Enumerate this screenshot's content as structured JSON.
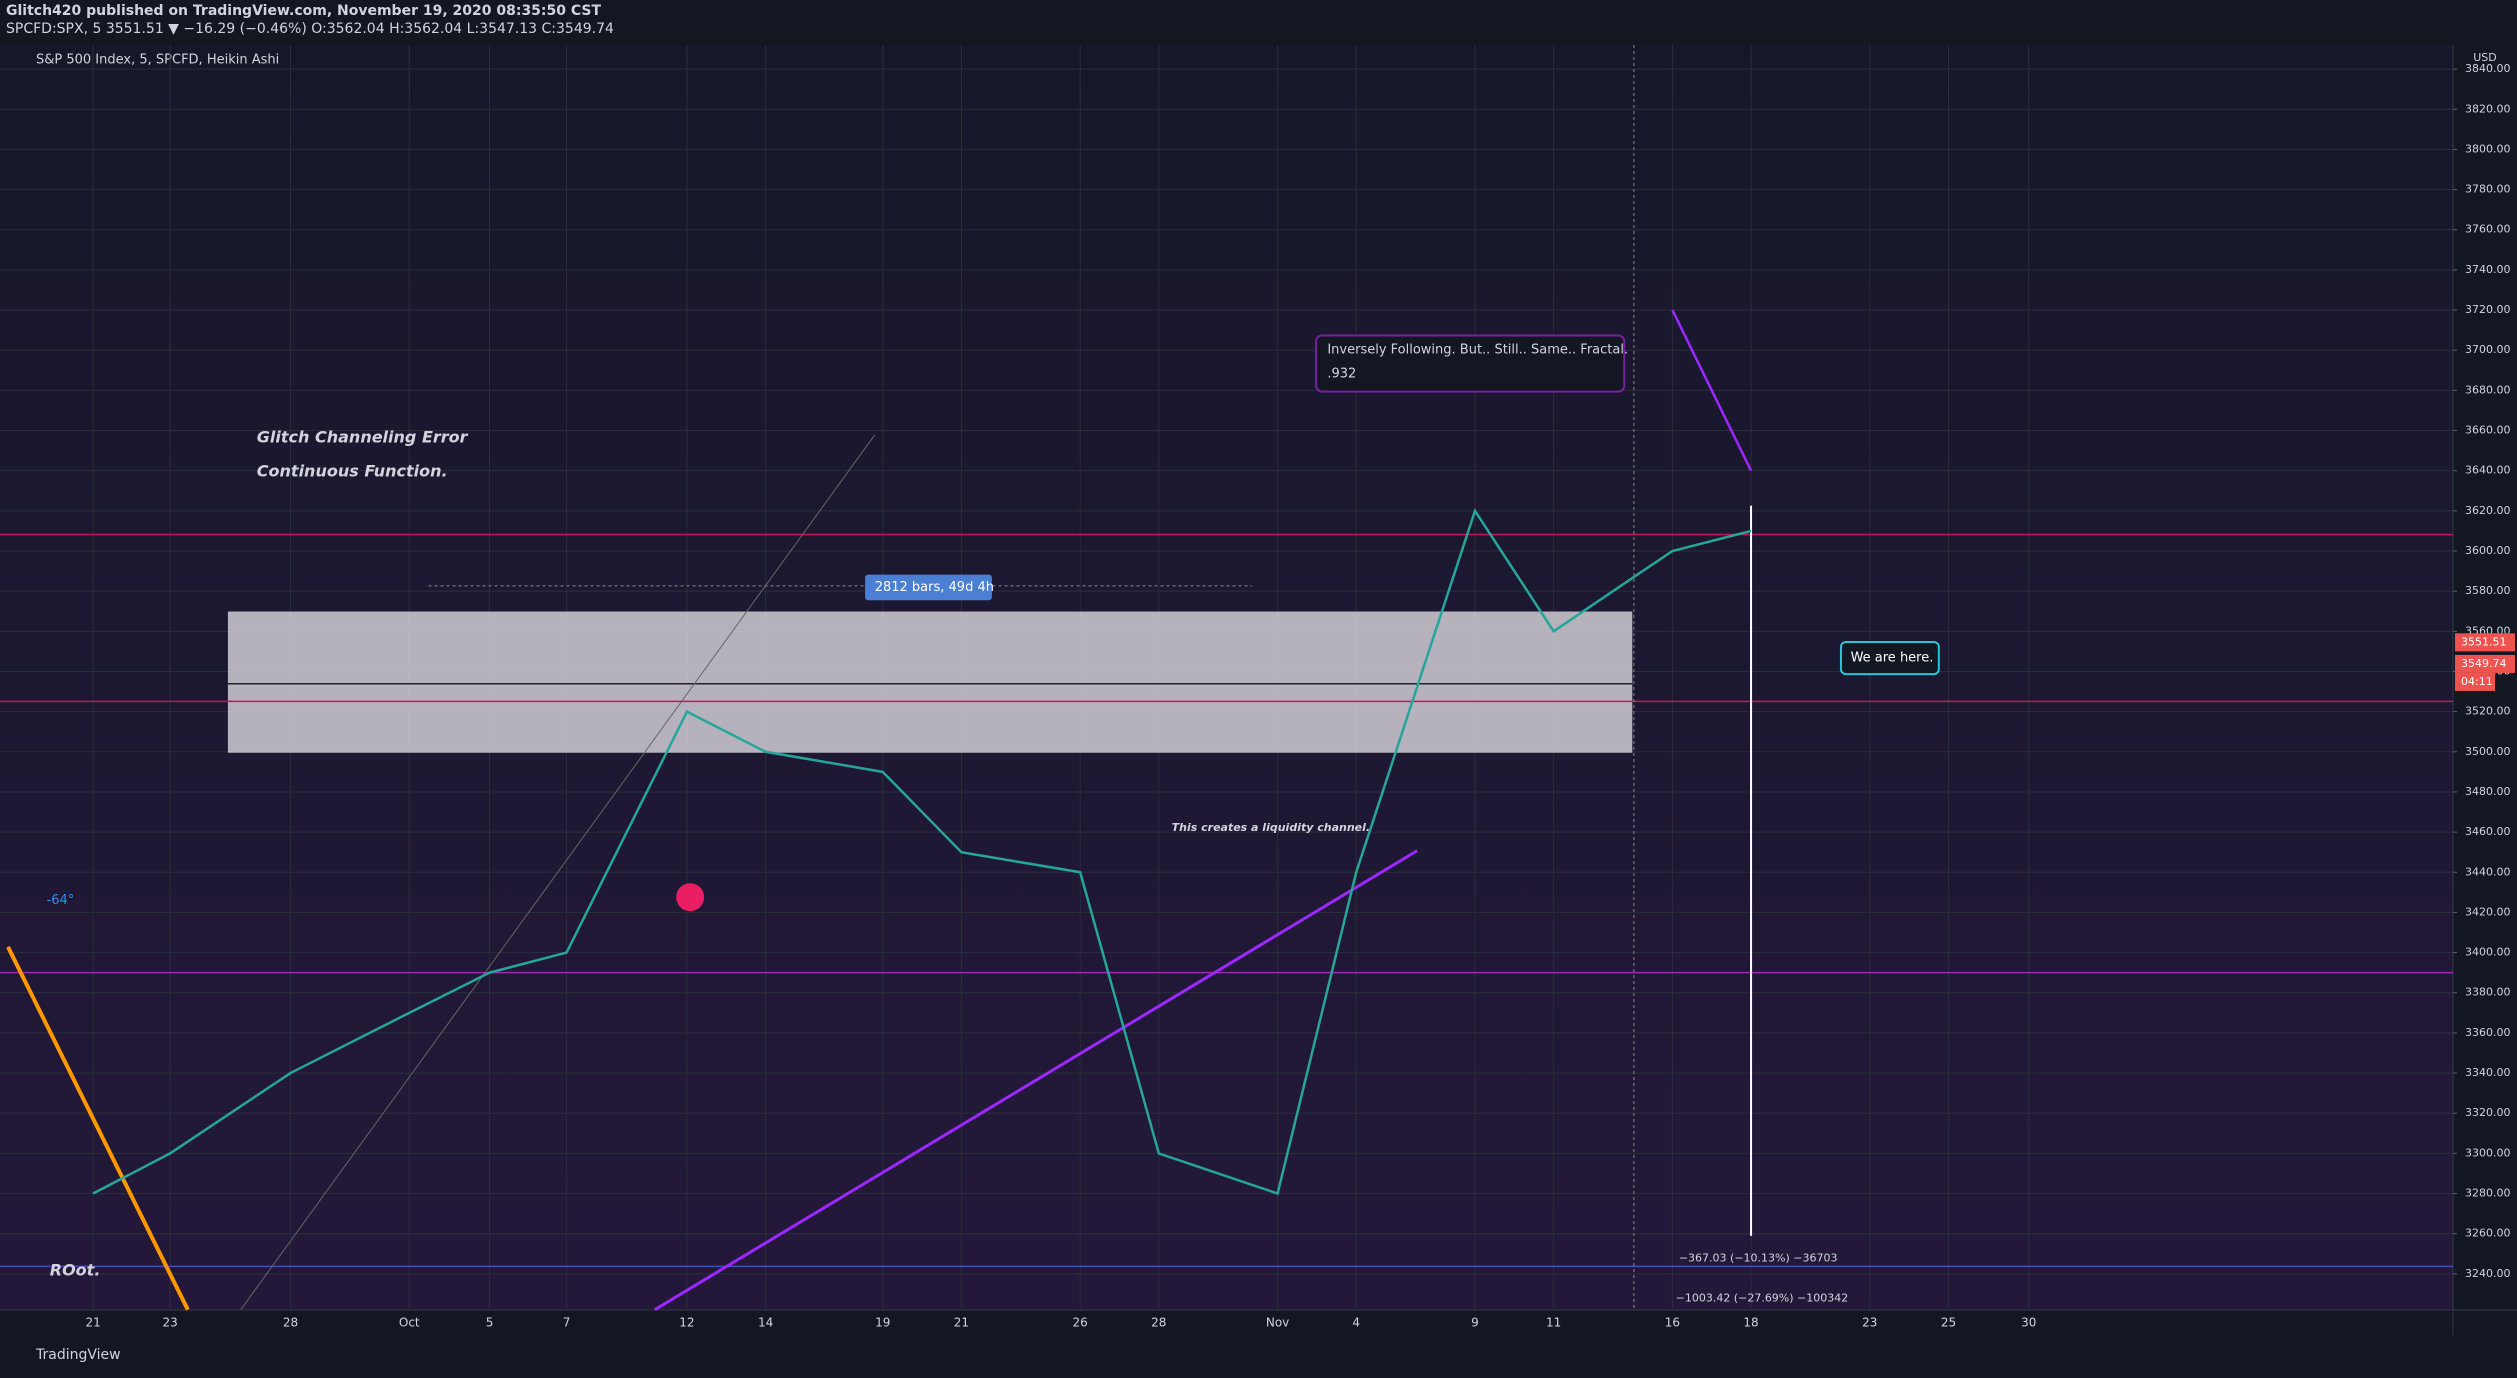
{
  "header": {
    "publisher": "Glitch420 published on TradingView.com, November 19, 2020 08:35:50 CST",
    "quote": "SPCFD:SPX, 5  3551.51 ▼ −16.29 (−0.46%) O:3562.04 H:3562.04 L:3547.13 C:3549.74"
  },
  "footer": {
    "brand": "TradingView"
  },
  "chart_data": {
    "type": "line",
    "title": "S&P 500 Index, 5, SPCFD, Heikin Ashi",
    "y_axis_label": "USD",
    "categories": [
      "21",
      "23",
      "28",
      "Oct",
      "5",
      "7",
      "12",
      "14",
      "19",
      "21",
      "26",
      "28",
      "Nov",
      "4",
      "9",
      "11",
      "16",
      "18",
      "23",
      "25",
      "30"
    ],
    "series": [
      {
        "color": "#26a69a",
        "values": [
          3280,
          3300,
          3340,
          3370,
          3390,
          3400,
          3520,
          3500,
          3490,
          3450,
          3440,
          3300,
          3280,
          3440,
          3620,
          3560,
          3600,
          3610,
          null,
          null,
          null
        ]
      },
      {
        "color": "#9c27ff",
        "values": [
          null,
          null,
          null,
          null,
          null,
          null,
          null,
          null,
          null,
          null,
          null,
          null,
          null,
          null,
          null,
          null,
          3720,
          3640,
          null,
          null,
          null
        ]
      }
    ],
    "ylim": [
      3222,
      3852
    ],
    "yticks": [
      {
        "value": 3240,
        "label": "3240.00"
      },
      {
        "value": 3260,
        "label": "3260.00"
      },
      {
        "value": 3280,
        "label": "3280.00"
      },
      {
        "value": 3300,
        "label": "3300.00"
      },
      {
        "value": 3320,
        "label": "3320.00"
      },
      {
        "value": 3340,
        "label": "3340.00"
      },
      {
        "value": 3360,
        "label": "3360.00"
      },
      {
        "value": 3380,
        "label": "3380.00"
      },
      {
        "value": 3400,
        "label": "3400.00"
      },
      {
        "value": 3420,
        "label": "3420.00"
      },
      {
        "value": 3440,
        "label": "3440.00"
      },
      {
        "value": 3460,
        "label": "3460.00"
      },
      {
        "value": 3480,
        "label": "3480.00"
      },
      {
        "value": 3500,
        "label": "3500.00"
      },
      {
        "value": 3520,
        "label": "3520.00"
      },
      {
        "value": 3540,
        "label": "3540.00"
      },
      {
        "value": 3560,
        "label": "3560.00"
      },
      {
        "value": 3580,
        "label": "3580.00"
      },
      {
        "value": 3600,
        "label": "3600.00"
      },
      {
        "value": 3620,
        "label": "3620.00"
      },
      {
        "value": 3640,
        "label": "3640.00"
      },
      {
        "value": 3660,
        "label": "3660.00"
      },
      {
        "value": 3680,
        "label": "3680.00"
      },
      {
        "value": 3700,
        "label": "3700.00"
      },
      {
        "value": 3720,
        "label": "3720.00"
      },
      {
        "value": 3740,
        "label": "3740.00"
      },
      {
        "value": 3760,
        "label": "3760.00"
      },
      {
        "value": 3780,
        "label": "3780.00"
      },
      {
        "value": 3800,
        "label": "3800.00"
      },
      {
        "value": 3820,
        "label": "3820.00"
      },
      {
        "value": 3840,
        "label": "3840.00"
      }
    ],
    "grid": true,
    "price_markers": [
      {
        "value": 3551.51,
        "label": "3551.51"
      },
      {
        "value": 3549.74,
        "label": "3549.74"
      }
    ],
    "countdown": "04:11",
    "annotations": [
      "Glitch Channeling Error",
      "Continuous Function.",
      "2812 bars, 49d 4h",
      "This creates a liquidity channel.",
      "Inversely Following. But.. Still.. Same.. Fractal.",
      ".932",
      "We are here.",
      "ROot.",
      "-64°",
      "−367.03 (−10.13%) −36703",
      "−1003.42 (−27.69%) −100342"
    ]
  }
}
